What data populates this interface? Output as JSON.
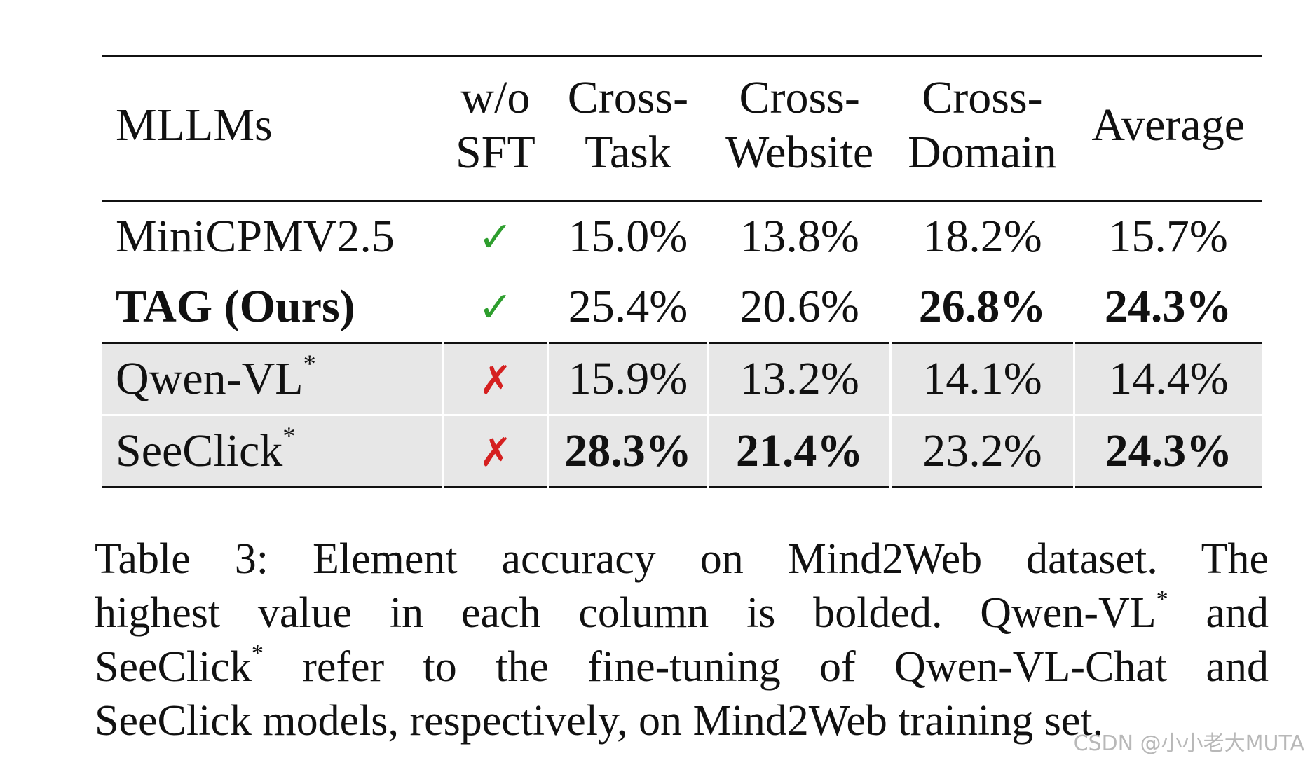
{
  "table": {
    "headers": [
      {
        "line1": "MLLMs",
        "line2": ""
      },
      {
        "line1": "w/o",
        "line2": "SFT"
      },
      {
        "line1": "Cross-",
        "line2": "Task"
      },
      {
        "line1": "Cross-",
        "line2": "Website"
      },
      {
        "line1": "Cross-",
        "line2": "Domain"
      },
      {
        "line1": "Average",
        "line2": ""
      }
    ],
    "rows": [
      {
        "model": "MiniCPMV2.5",
        "star": "",
        "sft_icon": "check-icon",
        "sft_glyph": "✓",
        "values": [
          "15.0%",
          "13.8%",
          "18.2%",
          "15.7%"
        ],
        "bold": [
          false,
          false,
          false,
          false
        ],
        "model_bold": false
      },
      {
        "model": "TAG (Ours)",
        "star": "",
        "sft_icon": "check-icon",
        "sft_glyph": "✓",
        "values": [
          "25.4%",
          "20.6%",
          "26.8%",
          "24.3%"
        ],
        "bold": [
          false,
          false,
          true,
          true
        ],
        "model_bold": true
      },
      {
        "model": "Qwen-VL",
        "star": "*",
        "sft_icon": "cross-icon",
        "sft_glyph": "✗",
        "values": [
          "15.9%",
          "13.2%",
          "14.1%",
          "14.4%"
        ],
        "bold": [
          false,
          false,
          false,
          false
        ],
        "model_bold": false
      },
      {
        "model": "SeeClick",
        "star": "*",
        "sft_icon": "cross-icon",
        "sft_glyph": "✗",
        "values": [
          "28.3%",
          "21.4%",
          "23.2%",
          "24.3%"
        ],
        "bold": [
          true,
          true,
          false,
          true
        ],
        "model_bold": false
      }
    ]
  },
  "caption": {
    "line1": "Table 3: Element accuracy on Mind2Web dataset. The",
    "line2_a": "highest value in each column is bolded. Qwen-VL",
    "line2_star": "*",
    "line2_b": " and",
    "line3_a": "SeeClick",
    "line3_star": "*",
    "line3_b": " refer to the fine-tuning of Qwen-VL-Chat and",
    "line4": "SeeClick models, respectively, on Mind2Web training set."
  },
  "watermark": "CSDN @小小老大MUTA",
  "colors": {
    "check": "#2e9e2e",
    "cross": "#d52020",
    "shaded_row": "#e7e7e7"
  }
}
